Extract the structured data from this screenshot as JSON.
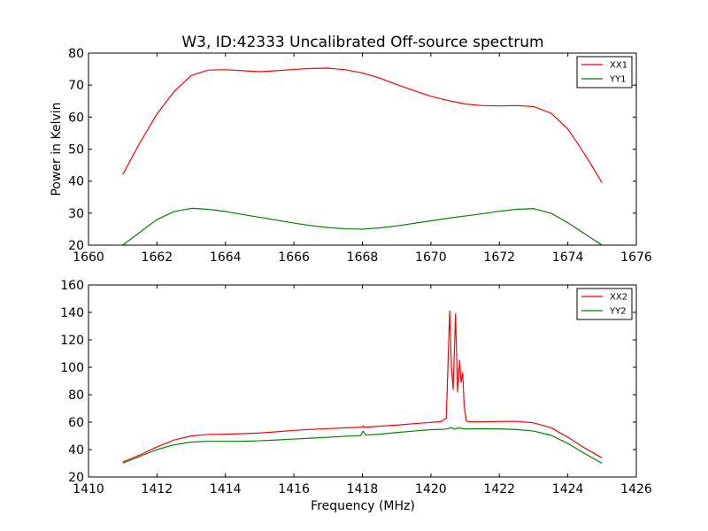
{
  "chart_data": [
    {
      "type": "line",
      "title": "W3, ID:42333 Uncalibrated Off-source spectrum",
      "xlabel": "",
      "ylabel": "Power in Kelvin",
      "xlim": [
        1660,
        1676
      ],
      "ylim": [
        20,
        80
      ],
      "xticks": [
        1660,
        1662,
        1664,
        1666,
        1668,
        1670,
        1672,
        1674,
        1676
      ],
      "yticks": [
        20,
        30,
        40,
        50,
        60,
        70,
        80
      ],
      "legend": "top-right",
      "grid": false,
      "series": [
        {
          "name": "XX1",
          "color": "#ff0000",
          "x": [
            1661.0,
            1661.5,
            1662.0,
            1662.5,
            1663.0,
            1663.5,
            1664.0,
            1664.5,
            1665.0,
            1665.5,
            1666.0,
            1666.5,
            1667.0,
            1667.5,
            1668.0,
            1668.5,
            1669.0,
            1669.5,
            1670.0,
            1670.5,
            1671.0,
            1671.5,
            1672.0,
            1672.5,
            1673.0,
            1673.5,
            1674.0,
            1674.5,
            1675.0
          ],
          "y": [
            42,
            52,
            61,
            68,
            73,
            74.7,
            74.8,
            74.5,
            74.2,
            74.5,
            74.9,
            75.2,
            75.3,
            74.8,
            73.8,
            72.2,
            70.2,
            68.3,
            66.5,
            65.2,
            64.1,
            63.6,
            63.5,
            63.6,
            63.3,
            61.3,
            56.3,
            48.3,
            39.5
          ]
        },
        {
          "name": "YY1",
          "color": "#008000",
          "x": [
            1661.0,
            1661.5,
            1662.0,
            1662.5,
            1663.0,
            1663.5,
            1664.0,
            1664.5,
            1665.0,
            1665.5,
            1666.0,
            1666.5,
            1667.0,
            1667.5,
            1668.0,
            1668.5,
            1669.0,
            1669.5,
            1670.0,
            1670.5,
            1671.0,
            1671.5,
            1672.0,
            1672.5,
            1673.0,
            1673.5,
            1674.0,
            1674.5,
            1675.0
          ],
          "y": [
            20,
            24,
            28,
            30.5,
            31.5,
            31.2,
            30.5,
            29.6,
            28.7,
            27.8,
            26.9,
            26.1,
            25.5,
            25.1,
            25,
            25.4,
            26,
            26.8,
            27.6,
            28.4,
            29.1,
            29.8,
            30.6,
            31.2,
            31.4,
            30,
            27,
            23.5,
            20
          ]
        }
      ]
    },
    {
      "type": "line",
      "title": "",
      "xlabel": "Frequency (MHz)",
      "ylabel": "",
      "xlim": [
        1410,
        1426
      ],
      "ylim": [
        20,
        160
      ],
      "xticks": [
        1410,
        1412,
        1414,
        1416,
        1418,
        1420,
        1422,
        1424,
        1426
      ],
      "yticks": [
        20,
        40,
        60,
        80,
        100,
        120,
        140,
        160
      ],
      "legend": "top-right",
      "grid": false,
      "series": [
        {
          "name": "XX2",
          "color": "#ff0000",
          "x": [
            1411.0,
            1411.5,
            1412.0,
            1412.5,
            1413.0,
            1413.5,
            1414.0,
            1414.5,
            1415.0,
            1415.5,
            1416.0,
            1416.5,
            1417.0,
            1417.5,
            1418.0,
            1418.02,
            1418.06,
            1418.5,
            1419.0,
            1419.5,
            1420.0,
            1420.3,
            1420.45,
            1420.55,
            1420.6,
            1420.65,
            1420.72,
            1420.78,
            1420.84,
            1420.88,
            1420.93,
            1420.97,
            1421.03,
            1421.1,
            1421.5,
            1422.0,
            1422.5,
            1423.0,
            1423.5,
            1424.0,
            1424.5,
            1425.0
          ],
          "y": [
            31,
            36,
            42,
            47,
            50,
            51,
            51.2,
            51.6,
            52.1,
            53,
            54,
            54.7,
            55.3,
            55.9,
            56.3,
            57.3,
            56.3,
            57,
            57.8,
            58.9,
            59.8,
            60.5,
            63,
            141,
            100,
            84,
            139,
            82,
            105,
            89,
            96,
            73,
            61,
            60.3,
            60.3,
            60.5,
            60.6,
            59.5,
            56,
            49,
            41,
            34
          ]
        },
        {
          "name": "YY2",
          "color": "#008000",
          "x": [
            1411.0,
            1411.5,
            1412.0,
            1412.5,
            1413.0,
            1413.5,
            1414.0,
            1414.5,
            1415.0,
            1415.5,
            1416.0,
            1416.5,
            1417.0,
            1417.5,
            1417.95,
            1418.02,
            1418.1,
            1418.5,
            1419.0,
            1419.5,
            1420.0,
            1420.4,
            1420.6,
            1420.7,
            1420.8,
            1421.0,
            1421.5,
            1422.0,
            1422.5,
            1423.0,
            1423.5,
            1424.0,
            1424.5,
            1425.0
          ],
          "y": [
            30,
            35,
            40,
            43.5,
            45.5,
            46,
            46,
            46.1,
            46.4,
            47,
            47.7,
            48.3,
            49,
            49.7,
            50.2,
            53.5,
            50.6,
            51.2,
            52.4,
            53.5,
            54.5,
            54.8,
            56,
            54.9,
            55.8,
            55,
            55.2,
            55.1,
            54.6,
            53.5,
            50.5,
            44.5,
            37,
            30
          ]
        }
      ]
    }
  ]
}
